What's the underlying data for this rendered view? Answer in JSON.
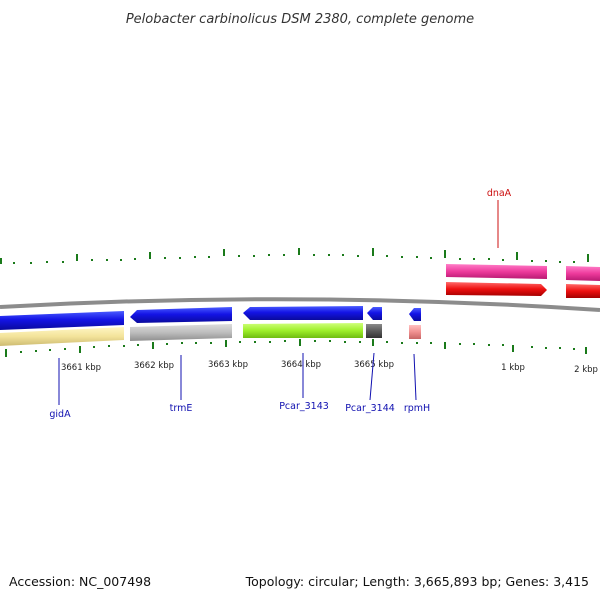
{
  "title": "Pelobacter carbinolicus DSM 2380, complete genome",
  "accession": "Accession: NC_007498",
  "summary": "Topology: circular; Length: 3,665,893 bp; Genes: 3,415",
  "colors": {
    "backbone": "#8c8c8c",
    "tick": "#1a7a1a",
    "label_blue": "#1010b0",
    "label_red": "#cc1111"
  },
  "ticks": [
    "3661 kbp",
    "3662 kbp",
    "3663 kbp",
    "3664 kbp",
    "3665 kbp",
    "1 kbp",
    "2 kbp"
  ],
  "genes": [
    {
      "name": "gidA",
      "label_color": "#1010b0"
    },
    {
      "name": "trmE",
      "label_color": "#1010b0"
    },
    {
      "name": "Pcar_3143",
      "label_color": "#1010b0"
    },
    {
      "name": "Pcar_3144",
      "label_color": "#1010b0"
    },
    {
      "name": "rpmH",
      "label_color": "#1010b0"
    },
    {
      "name": "dnaA",
      "label_color": "#cc1111"
    }
  ]
}
